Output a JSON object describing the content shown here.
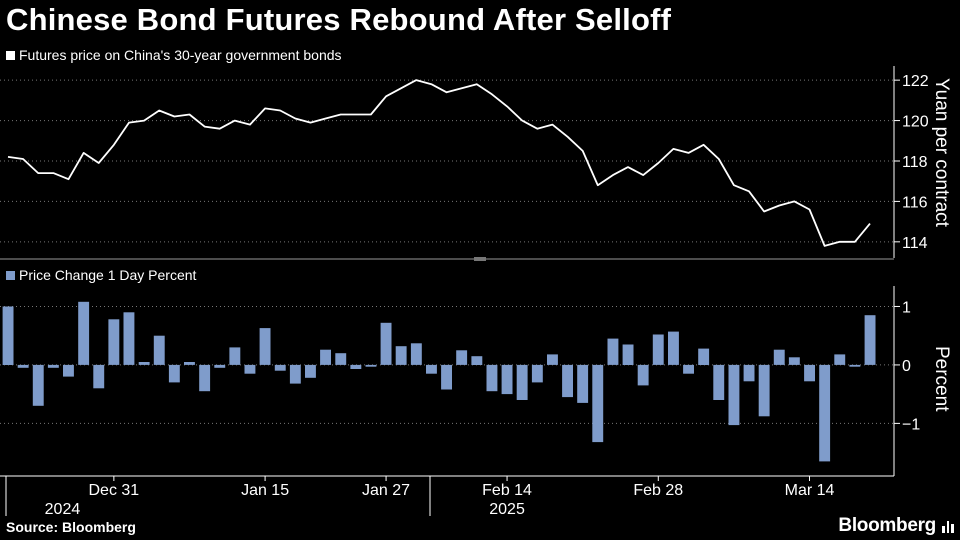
{
  "title": "Chinese Bond Futures Rebound After Selloff",
  "source": "Source: Bloomberg",
  "brand": "Bloomberg",
  "colors": {
    "background": "#000000",
    "line": "#ffffff",
    "bar": "#7f9ccb",
    "axis": "#ffffff",
    "grid": "#888888"
  },
  "chart_data": [
    {
      "type": "line",
      "legend": "Futures price on China's 30-year government bonds",
      "ylabel": "Yuan per contract",
      "ylim": [
        113.2,
        122.7
      ],
      "yticks": [
        114,
        116,
        118,
        120,
        122
      ],
      "values": [
        118.2,
        118.1,
        117.4,
        117.4,
        117.1,
        118.4,
        117.9,
        118.8,
        119.9,
        120.0,
        120.5,
        120.2,
        120.3,
        119.7,
        119.6,
        120.0,
        119.8,
        120.6,
        120.5,
        120.1,
        119.9,
        120.1,
        120.3,
        120.3,
        120.3,
        121.2,
        121.6,
        122.0,
        121.8,
        121.4,
        121.6,
        121.8,
        121.3,
        120.7,
        120.0,
        119.6,
        119.8,
        119.2,
        118.5,
        116.8,
        117.3,
        117.7,
        117.3,
        117.9,
        118.6,
        118.4,
        118.8,
        118.1,
        116.8,
        116.5,
        115.5,
        115.8,
        116.0,
        115.6,
        113.8,
        114.0,
        114.0,
        114.9
      ],
      "x_ticks": [
        {
          "label": "Dec 31",
          "index": 7
        },
        {
          "label": "Jan 15",
          "index": 17
        },
        {
          "label": "Jan 27",
          "index": 25
        },
        {
          "label": "Feb 14",
          "index": 33
        },
        {
          "label": "Feb 28",
          "index": 43
        },
        {
          "label": "Mar 14",
          "index": 53
        }
      ],
      "year_labels": [
        {
          "label": "2024",
          "index": 3.6
        },
        {
          "label": "2025",
          "index": 33
        }
      ]
    },
    {
      "type": "bar",
      "legend": "Price Change 1 Day Percent",
      "ylabel": "Percent",
      "ylim": [
        -1.9,
        1.35
      ],
      "yticks": [
        -1,
        0,
        1
      ],
      "values": [
        1.0,
        -0.05,
        -0.7,
        -0.05,
        -0.2,
        1.08,
        -0.4,
        0.78,
        0.9,
        0.05,
        0.5,
        -0.3,
        0.05,
        -0.45,
        -0.05,
        0.3,
        -0.15,
        0.63,
        -0.1,
        -0.32,
        -0.22,
        0.26,
        0.2,
        -0.07,
        -0.03,
        0.72,
        0.32,
        0.37,
        -0.15,
        -0.42,
        0.25,
        0.15,
        -0.45,
        -0.5,
        -0.6,
        -0.3,
        0.18,
        -0.55,
        -0.65,
        -1.32,
        0.45,
        0.35,
        -0.35,
        0.52,
        0.57,
        -0.15,
        0.28,
        -0.6,
        -1.03,
        -0.28,
        -0.88,
        0.26,
        0.13,
        -0.28,
        -1.65,
        0.18,
        -0.03,
        0.85
      ]
    }
  ]
}
